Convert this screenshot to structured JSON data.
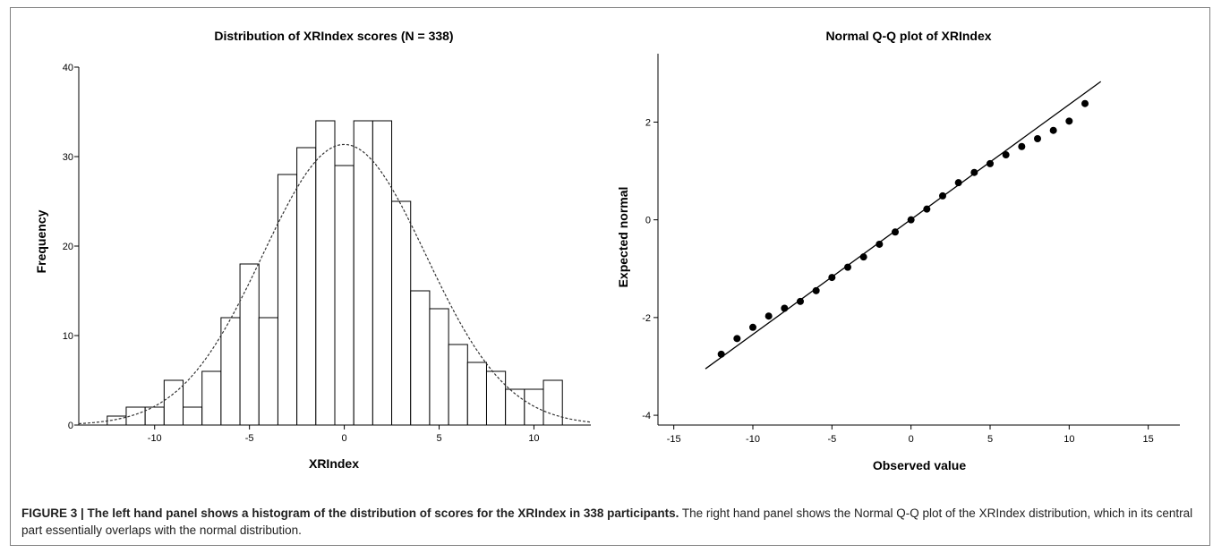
{
  "chart_data": [
    {
      "type": "bar",
      "title": "Distribution of XRIndex scores (N = 338)",
      "xlabel": "XRIndex",
      "ylabel": "Frequency",
      "xlim": [
        -14,
        13
      ],
      "ylim": [
        0,
        40
      ],
      "bin_width": 1,
      "xticks": [
        "-10",
        "-5",
        "0",
        "5",
        "10"
      ],
      "xtick_values": [
        -10,
        -5,
        0,
        5,
        10
      ],
      "yticks": [
        "0",
        "10",
        "20",
        "30",
        "40"
      ],
      "ytick_values": [
        0,
        10,
        20,
        30,
        40
      ],
      "bin_centers": [
        -12,
        -11,
        -10,
        -9,
        -8,
        -7,
        -6,
        -5,
        -4,
        -3,
        -2,
        -1,
        0,
        1,
        2,
        3,
        4,
        5,
        6,
        7,
        8,
        9,
        10,
        11
      ],
      "values": [
        1,
        2,
        2,
        5,
        2,
        6,
        12,
        18,
        12,
        28,
        31,
        34,
        29,
        34,
        34,
        25,
        15,
        13,
        9,
        7,
        6,
        4,
        4,
        5
      ],
      "normal_curve": {
        "mean": 0.0,
        "sd": 4.3,
        "n": 338,
        "style": "dashed"
      },
      "grid": false
    },
    {
      "type": "scatter",
      "title": "Normal Q-Q plot of XRIndex",
      "xlabel": "Observed value",
      "ylabel": "Expected normal",
      "xlim": [
        -16,
        17
      ],
      "ylim": [
        -4.2,
        3.4
      ],
      "xticks": [
        "-15",
        "-10",
        "-5",
        "0",
        "5",
        "10",
        "15"
      ],
      "xtick_values": [
        -15,
        -10,
        -5,
        0,
        5,
        10,
        15
      ],
      "yticks": [
        "-4",
        "-2",
        "0",
        "2"
      ],
      "ytick_values": [
        -4,
        -2,
        0,
        2
      ],
      "points": {
        "x": [
          -12,
          -11,
          -10,
          -9,
          -8,
          -7,
          -6,
          -5,
          -4,
          -3,
          -2,
          -1,
          0,
          1,
          2,
          3,
          4,
          5,
          6,
          7,
          8,
          9,
          10,
          11
        ],
        "y": [
          -2.75,
          -2.43,
          -2.2,
          -1.97,
          -1.81,
          -1.67,
          -1.45,
          -1.18,
          -0.97,
          -0.76,
          -0.5,
          -0.25,
          0.0,
          0.22,
          0.49,
          0.76,
          0.97,
          1.15,
          1.33,
          1.5,
          1.66,
          1.83,
          2.02,
          2.38
        ]
      },
      "reference_line": {
        "x": [
          -13,
          12
        ],
        "y": [
          -3.05,
          2.83
        ]
      },
      "grid": false
    }
  ],
  "caption": {
    "lead": "FIGURE 3 | The left hand panel shows a histogram of the distribution of scores for the XRIndex in 338 participants.",
    "rest": " The right hand panel shows the Normal Q-Q plot of the XRIndex distribution, which in its central part essentially overlaps with the normal distribution."
  }
}
